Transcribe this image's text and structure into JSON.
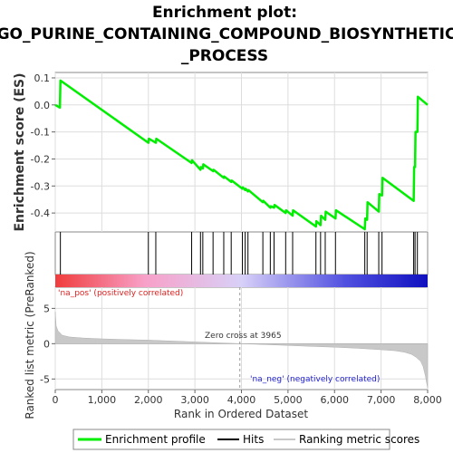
{
  "chart_data": {
    "type": "line",
    "title_lines": [
      "Enrichment plot:",
      "GO_PURINE_CONTAINING_COMPOUND_BIOSYNTHETIC",
      "_PROCESS"
    ],
    "ylabel_top": "Enrichment score (ES)",
    "ylabel_bottom": "Ranked list metric (PreRanked)",
    "xlabel": "Rank in Ordered Dataset",
    "x_range": [
      0,
      8000
    ],
    "x_ticks": [
      0,
      2000,
      4000,
      6000,
      8000
    ],
    "x_tick_labels": [
      "0",
      "1,000",
      "2,000",
      "3,000",
      "4,000",
      "5,000",
      "6,000",
      "7,000",
      "8,000"
    ],
    "x_tick_values": [
      0,
      1000,
      2000,
      3000,
      4000,
      5000,
      6000,
      7000,
      8000
    ],
    "es_ylim": [
      -0.47,
      0.12
    ],
    "es_ticks": [
      0.1,
      0.0,
      -0.1,
      -0.2,
      -0.3,
      -0.4
    ],
    "es_tick_labels": [
      "0.1",
      "0.0",
      "-0.1",
      "-0.2",
      "-0.3",
      "-0.4"
    ],
    "metric_ylim": [
      -6.5,
      8
    ],
    "metric_ticks": [
      5,
      0,
      -5
    ],
    "metric_tick_labels": [
      "5",
      "0",
      "-5"
    ],
    "series": [
      {
        "name": "Enrichment profile",
        "color": "#00ee00",
        "x": [
          0,
          100,
          110,
          2000,
          2010,
          2160,
          2170,
          2930,
          2940,
          3120,
          3130,
          3170,
          3180,
          3390,
          3400,
          3620,
          3630,
          3780,
          3790,
          4020,
          4030,
          4080,
          4090,
          4140,
          4150,
          4460,
          4470,
          4620,
          4630,
          4700,
          4710,
          4950,
          4960,
          5100,
          5110,
          5600,
          5610,
          5700,
          5710,
          5800,
          5810,
          6020,
          6030,
          6650,
          6660,
          6700,
          6710,
          6950,
          6960,
          7020,
          7030,
          7700,
          7710,
          7730,
          7740,
          7780,
          7790,
          8000
        ],
        "y": [
          0.0,
          -0.01,
          0.09,
          -0.14,
          -0.125,
          -0.14,
          -0.125,
          -0.215,
          -0.205,
          -0.24,
          -0.23,
          -0.235,
          -0.22,
          -0.245,
          -0.24,
          -0.27,
          -0.265,
          -0.285,
          -0.28,
          -0.31,
          -0.305,
          -0.315,
          -0.31,
          -0.32,
          -0.315,
          -0.36,
          -0.355,
          -0.38,
          -0.375,
          -0.38,
          -0.37,
          -0.4,
          -0.39,
          -0.41,
          -0.39,
          -0.45,
          -0.43,
          -0.445,
          -0.41,
          -0.425,
          -0.395,
          -0.42,
          -0.39,
          -0.46,
          -0.42,
          -0.425,
          -0.36,
          -0.395,
          -0.33,
          -0.335,
          -0.27,
          -0.355,
          -0.23,
          -0.23,
          -0.1,
          -0.1,
          0.03,
          0.0
        ]
      }
    ],
    "hits": [
      110,
      2000,
      2160,
      2930,
      3120,
      3170,
      3390,
      3620,
      3780,
      4020,
      4080,
      4140,
      4460,
      4620,
      4700,
      4950,
      5100,
      5600,
      5700,
      5800,
      6020,
      6650,
      6700,
      6950,
      7020,
      7700,
      7730,
      7780
    ],
    "metric_profile": {
      "x": [
        0,
        20,
        60,
        150,
        300,
        600,
        1000,
        1500,
        2000,
        2500,
        3000,
        3500,
        3965,
        4500,
        5000,
        5500,
        6000,
        6500,
        7000,
        7300,
        7500,
        7650,
        7750,
        7850,
        7900,
        7950,
        8000
      ],
      "y": [
        4.5,
        2.5,
        1.8,
        1.2,
        0.95,
        0.8,
        0.68,
        0.58,
        0.5,
        0.38,
        0.25,
        0.12,
        0.0,
        -0.12,
        -0.25,
        -0.38,
        -0.5,
        -0.65,
        -0.85,
        -1.0,
        -1.2,
        -1.5,
        -1.9,
        -2.5,
        -3.2,
        -4.5,
        -6.3
      ]
    },
    "zero_cross": 3965,
    "annotations": {
      "pos": "'na_pos' (positively correlated)",
      "neg": "'na_neg' (negatively correlated)",
      "zero_cross": "Zero cross at 3965"
    },
    "legend": [
      {
        "label": "Enrichment profile",
        "color": "#00ee00"
      },
      {
        "label": "Hits",
        "color": "#000000"
      },
      {
        "label": "Ranking metric scores",
        "color": "#c8c8c8"
      }
    ],
    "gradient_colors": [
      "#f03c3c",
      "#f8a0c8",
      "#d8d0f8",
      "#5050e0",
      "#1010c0"
    ],
    "grid": true,
    "legend_placement": "bottom"
  }
}
